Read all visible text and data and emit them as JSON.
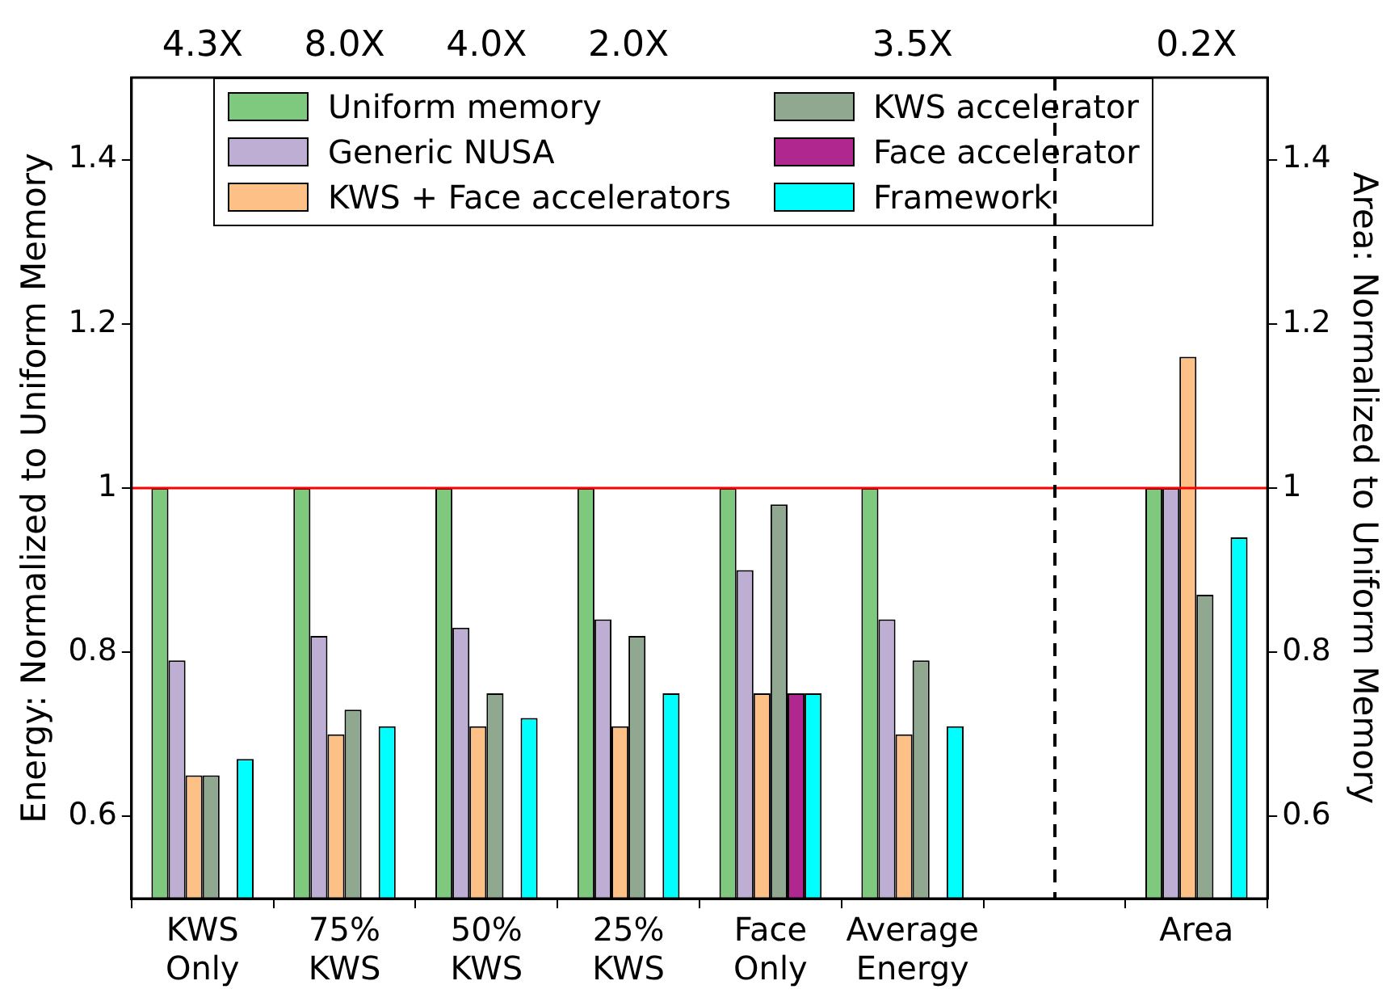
{
  "chart_data": {
    "type": "bar",
    "ylabel": "Energy: Normalized to Uniform Memory",
    "y2label": "Area: Normalized to Uniform Memory",
    "categories": [
      "KWS\nOnly",
      "75%\nKWS",
      "50%\nKWS",
      "25%\nKWS",
      "Face\nOnly",
      "Average\nEnergy",
      null,
      "Area"
    ],
    "ylim": [
      0.5,
      1.5
    ],
    "yticks": [
      0.6,
      0.8,
      1.0,
      1.2,
      1.4
    ],
    "y2lim": [
      0.5,
      1.5
    ],
    "y2ticks": [
      0.6,
      0.8,
      1.0,
      1.2,
      1.4
    ],
    "series": [
      {
        "name": "Uniform memory",
        "color": "#7fc97f",
        "values": [
          1.0,
          1.0,
          1.0,
          1.0,
          1.0,
          1.0,
          null,
          1.0
        ]
      },
      {
        "name": "Generic NUSA",
        "color": "#beaed4",
        "values": [
          0.79,
          0.82,
          0.83,
          0.84,
          0.9,
          0.84,
          null,
          1.0
        ]
      },
      {
        "name": "KWS + Face accelerators",
        "color": "#fdc086",
        "values": [
          0.65,
          0.7,
          0.71,
          0.71,
          0.75,
          0.7,
          null,
          1.16
        ]
      },
      {
        "name": "KWS accelerator",
        "color": "#90a890",
        "values": [
          0.65,
          0.73,
          0.75,
          0.82,
          0.98,
          0.79,
          null,
          0.87
        ]
      },
      {
        "name": "Face accelerator",
        "color": "#b0288f",
        "values": [
          null,
          null,
          null,
          null,
          0.75,
          null,
          null,
          null
        ]
      },
      {
        "name": "Framework",
        "color": "#00ffff",
        "values": [
          0.67,
          0.71,
          0.72,
          0.75,
          0.75,
          0.71,
          null,
          0.94
        ]
      }
    ],
    "ref_lines": [
      {
        "axis": "y",
        "value": 1.0,
        "color": "#ff0000",
        "line_style": "solid"
      }
    ],
    "annotations": [
      "4.3X",
      "8.0X",
      "4.0X",
      "2.0X",
      "3.5X",
      "0.2X"
    ],
    "grid": false,
    "legend": "top"
  }
}
